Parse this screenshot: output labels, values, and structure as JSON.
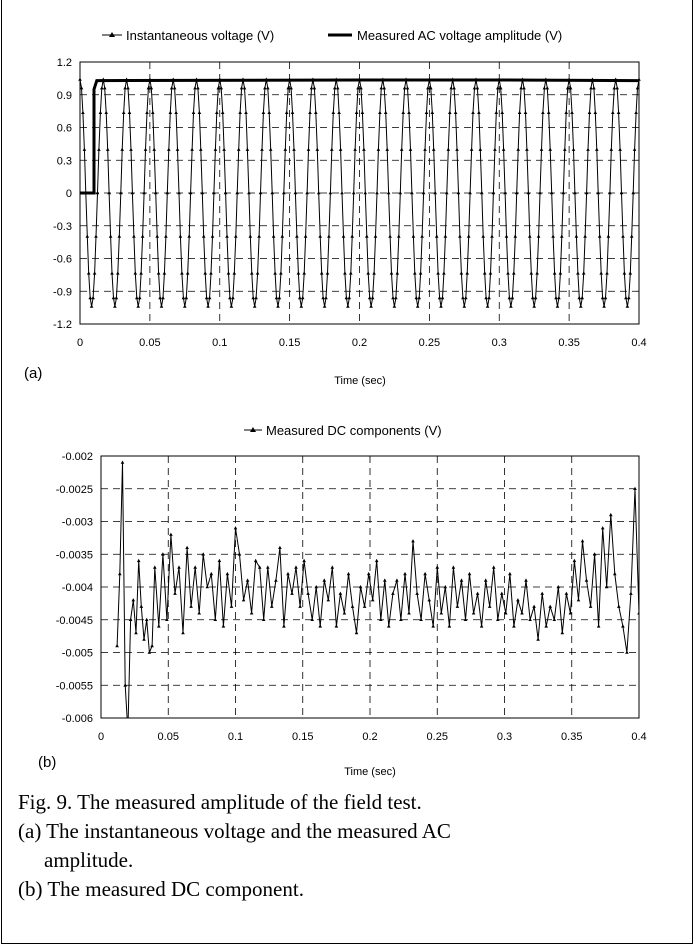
{
  "chart_data": [
    {
      "type": "line",
      "panel_label": "(a)",
      "xlabel": "Time (sec)",
      "ylabel": "",
      "xlim": [
        0,
        0.4
      ],
      "ylim": [
        -1.2,
        1.2
      ],
      "xticks": [
        "0",
        "0.05",
        "0.1",
        "0.15",
        "0.2",
        "0.25",
        "0.3",
        "0.35",
        "0.4"
      ],
      "yticks": [
        "1.2",
        "0.9",
        "0.6",
        "0.3",
        "0",
        "-0.3",
        "-0.6",
        "-0.9",
        "-1.2"
      ],
      "grid": true,
      "legend_position": "top",
      "series": [
        {
          "name": "Instantaneous voltage (V)",
          "marker": "small-triangle",
          "frequency_hz": 60,
          "amplitude": 1.04,
          "x_range": [
            0,
            0.4
          ],
          "samples_per_cycle": 16,
          "color": "#000000"
        },
        {
          "name": "Measured AC voltage amplitude (V)",
          "marker": "none",
          "x": [
            0,
            0.01,
            0.01,
            0.012,
            0.2,
            0.3,
            0.4
          ],
          "y": [
            0,
            0,
            0.95,
            1.03,
            1.035,
            1.035,
            1.03
          ],
          "color": "#000000"
        }
      ]
    },
    {
      "type": "line",
      "panel_label": "(b)",
      "xlabel": "Time (sec)",
      "ylabel": "",
      "xlim": [
        0,
        0.4
      ],
      "ylim": [
        -0.006,
        -0.002
      ],
      "xticks": [
        "0",
        "0.05",
        "0.1",
        "0.15",
        "0.2",
        "0.25",
        "0.3",
        "0.35",
        "0.4"
      ],
      "yticks": [
        "-0.002",
        "-0.0025",
        "-0.003",
        "-0.0035",
        "-0.004",
        "-0.0045",
        "-0.005",
        "-0.0055",
        "-0.006"
      ],
      "grid": true,
      "legend_position": "top",
      "series": [
        {
          "name": "Measured DC components (V)",
          "marker": "small-triangle",
          "color": "#000000",
          "x": [
            0.012,
            0.014,
            0.016,
            0.018,
            0.02,
            0.022,
            0.024,
            0.026,
            0.028,
            0.03,
            0.032,
            0.034,
            0.036,
            0.038,
            0.04,
            0.043,
            0.046,
            0.049,
            0.052,
            0.055,
            0.058,
            0.061,
            0.064,
            0.067,
            0.07,
            0.073,
            0.076,
            0.079,
            0.082,
            0.085,
            0.088,
            0.091,
            0.094,
            0.097,
            0.1,
            0.103,
            0.106,
            0.109,
            0.112,
            0.115,
            0.118,
            0.121,
            0.124,
            0.127,
            0.13,
            0.133,
            0.136,
            0.139,
            0.142,
            0.145,
            0.148,
            0.151,
            0.154,
            0.157,
            0.16,
            0.163,
            0.166,
            0.169,
            0.172,
            0.175,
            0.178,
            0.181,
            0.184,
            0.187,
            0.19,
            0.193,
            0.196,
            0.199,
            0.202,
            0.205,
            0.208,
            0.211,
            0.214,
            0.217,
            0.22,
            0.223,
            0.226,
            0.229,
            0.232,
            0.235,
            0.238,
            0.241,
            0.244,
            0.247,
            0.25,
            0.253,
            0.256,
            0.259,
            0.262,
            0.265,
            0.268,
            0.271,
            0.274,
            0.277,
            0.28,
            0.283,
            0.286,
            0.289,
            0.292,
            0.295,
            0.298,
            0.301,
            0.304,
            0.307,
            0.31,
            0.313,
            0.316,
            0.319,
            0.322,
            0.325,
            0.328,
            0.331,
            0.334,
            0.337,
            0.34,
            0.343,
            0.346,
            0.349,
            0.352,
            0.355,
            0.358,
            0.361,
            0.364,
            0.367,
            0.37,
            0.373,
            0.376,
            0.379,
            0.382,
            0.385,
            0.388,
            0.391,
            0.394,
            0.397,
            0.4
          ],
          "y": [
            -0.0049,
            -0.0038,
            -0.0021,
            -0.0055,
            -0.0062,
            -0.0045,
            -0.0042,
            -0.0047,
            -0.0036,
            -0.0043,
            -0.0048,
            -0.0045,
            -0.005,
            -0.0049,
            -0.0037,
            -0.0046,
            -0.0035,
            -0.0045,
            -0.0032,
            -0.0041,
            -0.0037,
            -0.0047,
            -0.0034,
            -0.0043,
            -0.0037,
            -0.0044,
            -0.0035,
            -0.004,
            -0.0038,
            -0.0045,
            -0.0036,
            -0.0046,
            -0.0038,
            -0.0043,
            -0.0031,
            -0.0035,
            -0.0042,
            -0.0039,
            -0.0044,
            -0.0036,
            -0.0037,
            -0.0045,
            -0.0037,
            -0.0043,
            -0.0039,
            -0.0034,
            -0.0046,
            -0.0038,
            -0.0041,
            -0.0037,
            -0.0043,
            -0.0036,
            -0.0041,
            -0.0045,
            -0.004,
            -0.0046,
            -0.0039,
            -0.0042,
            -0.0037,
            -0.0046,
            -0.0041,
            -0.0044,
            -0.0038,
            -0.0043,
            -0.0047,
            -0.004,
            -0.0043,
            -0.0038,
            -0.0042,
            -0.0036,
            -0.0045,
            -0.0039,
            -0.0046,
            -0.0041,
            -0.0039,
            -0.0045,
            -0.0038,
            -0.0044,
            -0.0033,
            -0.0041,
            -0.0045,
            -0.0038,
            -0.0042,
            -0.0046,
            -0.0037,
            -0.0044,
            -0.004,
            -0.0046,
            -0.0037,
            -0.0043,
            -0.0039,
            -0.0045,
            -0.0038,
            -0.0044,
            -0.0041,
            -0.0046,
            -0.0039,
            -0.0043,
            -0.0037,
            -0.0045,
            -0.0041,
            -0.0044,
            -0.0038,
            -0.0046,
            -0.0042,
            -0.0044,
            -0.0039,
            -0.0045,
            -0.0043,
            -0.0048,
            -0.0041,
            -0.0046,
            -0.0043,
            -0.0045,
            -0.004,
            -0.0047,
            -0.0041,
            -0.0044,
            -0.0036,
            -0.0042,
            -0.0033,
            -0.0039,
            -0.0043,
            -0.0035,
            -0.0046,
            -0.0031,
            -0.004,
            -0.0029,
            -0.0038,
            -0.0043,
            -0.0046,
            -0.005,
            -0.0041,
            -0.0025,
            -0.0044
          ]
        }
      ]
    }
  ],
  "caption": {
    "line1": "Fig. 9. The measured amplitude of the field test.",
    "line2": "(a) The instantaneous voltage and the measured AC",
    "line3": "amplitude.",
    "line4": "(b) The measured DC component."
  }
}
